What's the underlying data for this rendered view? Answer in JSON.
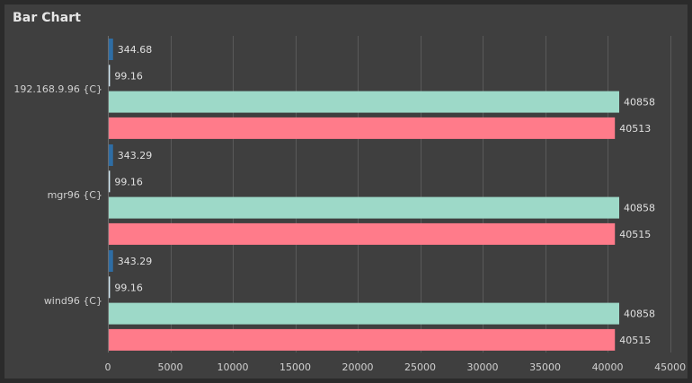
{
  "panel": {
    "title": "Bar Chart"
  },
  "chart_data": {
    "type": "bar",
    "orientation": "horizontal",
    "title": "",
    "xlabel": "",
    "ylabel": "",
    "xlim": [
      0,
      45000
    ],
    "x_ticks": [
      0,
      5000,
      10000,
      15000,
      20000,
      25000,
      30000,
      35000,
      40000,
      45000
    ],
    "grid": true,
    "legend": "none",
    "categories": [
      "192.168.9.96 {C}",
      "mgr96 {C}",
      "wind96 {C}"
    ],
    "series": [
      {
        "color": "#2e6da4",
        "values": [
          344.68,
          343.29,
          343.29
        ],
        "labels": [
          "344.68",
          "343.29",
          "343.29"
        ]
      },
      {
        "color": "#d4ecf7",
        "values": [
          99.16,
          99.16,
          99.16
        ],
        "labels": [
          "99.16",
          "99.16",
          "99.16"
        ]
      },
      {
        "color": "#9dd9c8",
        "values": [
          40858,
          40858,
          40858
        ],
        "labels": [
          "40858",
          "40858",
          "40858"
        ]
      },
      {
        "color": "#ff7b8a",
        "values": [
          40513,
          40515,
          40515
        ],
        "labels": [
          "40513",
          "40515",
          "40515"
        ]
      }
    ]
  }
}
